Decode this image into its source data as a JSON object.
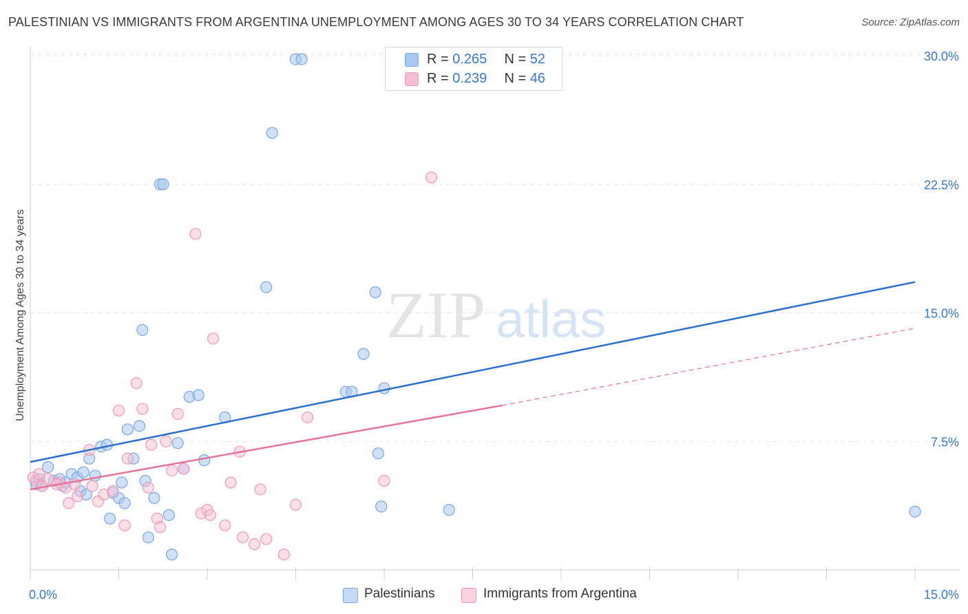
{
  "title": "PALESTINIAN VS IMMIGRANTS FROM ARGENTINA UNEMPLOYMENT AMONG AGES 30 TO 34 YEARS CORRELATION CHART",
  "source": "Source: ZipAtlas.com",
  "watermark": {
    "zip": "ZIP",
    "atlas": "atlas"
  },
  "legend": {
    "rows": [
      {
        "r_label": "R = ",
        "r_value": "0.265",
        "n_label": "N = ",
        "n_value": "52",
        "color": "#a9c8f0",
        "border": "#7aa7e0"
      },
      {
        "r_label": "R = ",
        "r_value": "0.239",
        "n_label": "N = ",
        "n_value": "46",
        "color": "#f6bfd0",
        "border": "#ee9ab4"
      }
    ]
  },
  "bottom_legend": [
    {
      "label": "Palestinians",
      "color": "#c5daf5",
      "border": "#7aa7e0"
    },
    {
      "label": "Immigrants from Argentina",
      "color": "#f9d2de",
      "border": "#ee9ab4"
    }
  ],
  "chart_data": {
    "type": "scatter",
    "title": "PALESTINIAN VS IMMIGRANTS FROM ARGENTINA UNEMPLOYMENT AMONG AGES 30 TO 34 YEARS CORRELATION CHART",
    "ylabel": "Unemployment Among Ages 30 to 34 years",
    "xlabel": "",
    "xlim": [
      0,
      15
    ],
    "ylim": [
      0,
      30
    ],
    "x_tick_labels": [
      "0.0%",
      "15.0%"
    ],
    "y_ticks": [
      7.5,
      15.0,
      22.5,
      30.0
    ],
    "y_tick_labels": [
      "7.5%",
      "15.0%",
      "22.5%",
      "30.0%"
    ],
    "grid": "horizontal dashed",
    "series": [
      {
        "name": "Palestinians",
        "color": "#7aa7e0",
        "fill": "rgba(169,200,240,0.55)",
        "trend_color": "#2a6fcf",
        "trend": {
          "x": [
            0,
            15
          ],
          "y": [
            6.3,
            16.8
          ]
        },
        "points": [
          [
            0.1,
            5.0
          ],
          [
            0.15,
            5.3
          ],
          [
            0.2,
            4.9
          ],
          [
            0.3,
            6.0
          ],
          [
            0.4,
            5.2
          ],
          [
            0.5,
            5.3
          ],
          [
            0.55,
            4.9
          ],
          [
            0.6,
            5.1
          ],
          [
            0.7,
            5.6
          ],
          [
            0.8,
            5.4
          ],
          [
            0.85,
            4.6
          ],
          [
            0.9,
            5.7
          ],
          [
            0.95,
            4.4
          ],
          [
            1.0,
            6.5
          ],
          [
            1.1,
            5.5
          ],
          [
            1.2,
            7.2
          ],
          [
            1.3,
            7.3
          ],
          [
            1.35,
            3.0
          ],
          [
            1.4,
            4.5
          ],
          [
            1.5,
            4.2
          ],
          [
            1.55,
            5.1
          ],
          [
            1.6,
            3.9
          ],
          [
            1.65,
            8.2
          ],
          [
            1.75,
            6.5
          ],
          [
            1.85,
            8.4
          ],
          [
            1.9,
            14.0
          ],
          [
            1.95,
            5.2
          ],
          [
            2.0,
            1.9
          ],
          [
            2.1,
            4.2
          ],
          [
            2.2,
            22.5
          ],
          [
            2.25,
            22.5
          ],
          [
            2.35,
            3.2
          ],
          [
            2.4,
            0.9
          ],
          [
            2.5,
            7.4
          ],
          [
            2.6,
            5.9
          ],
          [
            2.7,
            10.1
          ],
          [
            2.85,
            10.2
          ],
          [
            2.95,
            6.4
          ],
          [
            3.3,
            8.9
          ],
          [
            4.0,
            16.5
          ],
          [
            4.1,
            25.5
          ],
          [
            4.5,
            29.8
          ],
          [
            4.6,
            29.8
          ],
          [
            5.35,
            10.4
          ],
          [
            5.45,
            10.4
          ],
          [
            5.65,
            12.6
          ],
          [
            5.85,
            16.2
          ],
          [
            5.9,
            6.8
          ],
          [
            5.95,
            3.7
          ],
          [
            6.0,
            10.6
          ],
          [
            7.1,
            3.5
          ],
          [
            15.0,
            3.4
          ]
        ]
      },
      {
        "name": "Immigrants from Argentina",
        "color": "#ee9ab4",
        "fill": "rgba(246,191,208,0.5)",
        "trend_color": "#e5739a",
        "trend": {
          "x": [
            0,
            8.0
          ],
          "y": [
            4.7,
            9.6
          ]
        },
        "trend_ext": {
          "x": [
            8.0,
            15
          ],
          "y": [
            9.6,
            14.1
          ]
        },
        "points": [
          [
            0.05,
            5.4
          ],
          [
            0.1,
            5.2
          ],
          [
            0.2,
            4.9
          ],
          [
            0.3,
            5.3
          ],
          [
            0.5,
            5.1
          ],
          [
            0.6,
            4.8
          ],
          [
            0.65,
            3.9
          ],
          [
            0.75,
            5.0
          ],
          [
            0.8,
            4.3
          ],
          [
            1.0,
            7.0
          ],
          [
            1.05,
            4.9
          ],
          [
            1.15,
            4.0
          ],
          [
            1.25,
            4.4
          ],
          [
            1.5,
            9.3
          ],
          [
            1.6,
            2.6
          ],
          [
            1.65,
            6.5
          ],
          [
            1.8,
            10.9
          ],
          [
            1.9,
            9.4
          ],
          [
            2.0,
            4.8
          ],
          [
            2.05,
            7.3
          ],
          [
            2.15,
            3.0
          ],
          [
            2.2,
            2.5
          ],
          [
            2.3,
            7.5
          ],
          [
            2.4,
            5.8
          ],
          [
            2.5,
            9.1
          ],
          [
            2.6,
            5.9
          ],
          [
            2.8,
            19.6
          ],
          [
            2.9,
            3.3
          ],
          [
            3.0,
            3.5
          ],
          [
            3.05,
            3.2
          ],
          [
            3.1,
            13.5
          ],
          [
            3.3,
            2.6
          ],
          [
            3.4,
            5.1
          ],
          [
            3.55,
            6.9
          ],
          [
            3.6,
            1.9
          ],
          [
            3.8,
            1.5
          ],
          [
            3.9,
            4.7
          ],
          [
            4.0,
            1.8
          ],
          [
            4.3,
            0.9
          ],
          [
            4.5,
            3.8
          ],
          [
            4.7,
            8.9
          ],
          [
            6.0,
            5.2
          ],
          [
            6.8,
            22.9
          ],
          [
            0.15,
            5.6
          ],
          [
            0.45,
            5.0
          ],
          [
            1.4,
            4.6
          ]
        ]
      }
    ]
  }
}
